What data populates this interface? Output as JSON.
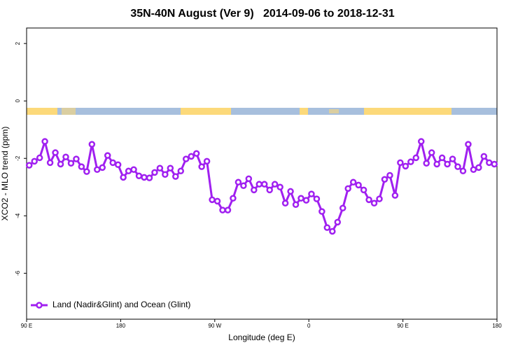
{
  "chart_data": {
    "type": "line",
    "title": "35N-40N August (Ver 9)   2014-09-06 to 2018-12-31",
    "xlabel": "Longitude (deg E)",
    "ylabel": "XCO2 - MLO trend (ppm)",
    "xlim": [
      90,
      540
    ],
    "ylim": [
      -7.6,
      2.54
    ],
    "xticks": [
      {
        "value": 90,
        "label": "90 E"
      },
      180,
      {
        "value": 270,
        "label": "90 W"
      },
      {
        "value": 360,
        "label": "0"
      },
      {
        "value": 450,
        "label": "90 E"
      },
      {
        "value": 540,
        "label": "180"
      }
    ],
    "yticks": [
      2,
      0,
      -2,
      -4,
      -6
    ],
    "legend": "bottom-left",
    "x": [
      92.5,
      97.5,
      102.5,
      107.5,
      112.5,
      117.5,
      122.5,
      127.5,
      132.5,
      137.5,
      142.5,
      147.5,
      152.5,
      157.5,
      162.5,
      167.5,
      172.5,
      177.5,
      182.5,
      187.5,
      192.5,
      197.5,
      202.5,
      207.5,
      212.5,
      217.5,
      222.5,
      227.5,
      232.5,
      237.5,
      242.5,
      247.5,
      252.5,
      257.5,
      262.5,
      267.5,
      272.5,
      277.5,
      282.5,
      287.5,
      292.5,
      297.5,
      302.5,
      307.5,
      312.5,
      317.5,
      322.5,
      327.5,
      332.5,
      337.5,
      342.5,
      347.5,
      352.5,
      357.5,
      362.5,
      367.5,
      372.5,
      377.5,
      382.5,
      387.5,
      392.5,
      397.5,
      402.5,
      407.5,
      412.5,
      417.5,
      422.5,
      427.5,
      432.5,
      437.5,
      442.5,
      447.5,
      452.5,
      457.5,
      462.5,
      467.5,
      472.5,
      477.5,
      482.5,
      487.5,
      492.5,
      497.5,
      502.5,
      507.5,
      512.5,
      517.5,
      522.5,
      527.5,
      532.5,
      537.5
    ],
    "series": [
      {
        "name": "Land (Nadir&Glint) and Ocean (Glint)",
        "color": "#a020f0",
        "values": [
          -2.24,
          -2.1,
          -1.98,
          -1.41,
          -2.15,
          -1.8,
          -2.2,
          -1.95,
          -2.17,
          -2.02,
          -2.29,
          -2.46,
          -1.51,
          -2.39,
          -2.32,
          -1.9,
          -2.15,
          -2.22,
          -2.66,
          -2.44,
          -2.39,
          -2.61,
          -2.66,
          -2.68,
          -2.49,
          -2.34,
          -2.56,
          -2.34,
          -2.63,
          -2.44,
          -2.02,
          -1.93,
          -1.83,
          -2.29,
          -2.1,
          -3.44,
          -3.49,
          -3.8,
          -3.8,
          -3.39,
          -2.83,
          -2.95,
          -2.71,
          -3.1,
          -2.9,
          -2.9,
          -3.1,
          -2.9,
          -3.0,
          -3.56,
          -3.15,
          -3.61,
          -3.39,
          -3.46,
          -3.24,
          -3.41,
          -3.85,
          -4.41,
          -4.54,
          -4.22,
          -3.73,
          -3.05,
          -2.83,
          -2.93,
          -3.1,
          -3.44,
          -3.56,
          -3.41,
          -2.73,
          -2.59,
          -3.29,
          -2.15,
          -2.27,
          -2.12,
          -1.98,
          -1.41,
          -2.17,
          -1.8,
          -2.2,
          -1.98,
          -2.2,
          -2.02,
          -2.29,
          -2.44,
          -1.51,
          -2.39,
          -2.32,
          -1.93,
          -2.15,
          -2.2
        ]
      }
    ]
  }
}
